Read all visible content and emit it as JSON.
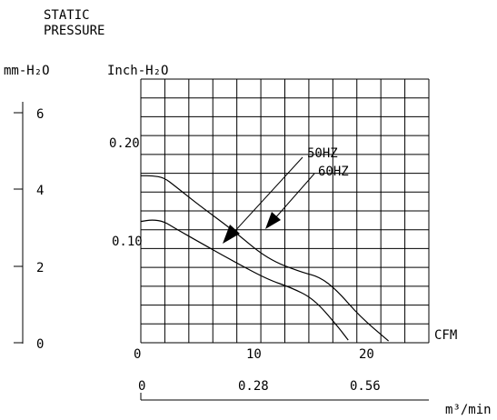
{
  "chart_data": {
    "type": "line",
    "title_lines": [
      "STATIC",
      "PRESSURE"
    ],
    "left_axis_title": "mm-H₂O",
    "left_axis_ticks": [
      "6",
      "4",
      "2",
      "0"
    ],
    "y_axis_title": "Inch-H₂O",
    "y_tick_labels": [
      "0.20",
      "0.10"
    ],
    "x_axis_title": "CFM",
    "x_tick_labels": [
      "0",
      "10",
      "20"
    ],
    "bottom_axis_title": "m³/min",
    "bottom_axis_ticks": [
      "0",
      "0.28",
      "0.56"
    ],
    "xlim": [
      0,
      25
    ],
    "ylim": [
      0,
      0.3
    ],
    "series": [
      {
        "name": "50HZ",
        "x": [
          0,
          1,
          2,
          3,
          5,
          8,
          11,
          13,
          15,
          17,
          18
        ],
        "y": [
          0.138,
          0.14,
          0.138,
          0.13,
          0.115,
          0.093,
          0.072,
          0.063,
          0.05,
          0.02,
          0.003
        ]
      },
      {
        "name": "60HZ",
        "x": [
          0,
          1,
          2,
          3,
          5,
          8,
          11,
          14,
          15.5,
          17,
          19,
          21.5
        ],
        "y": [
          0.19,
          0.19,
          0.188,
          0.178,
          0.157,
          0.128,
          0.095,
          0.08,
          0.075,
          0.06,
          0.03,
          0.002
        ]
      }
    ],
    "grid": true
  }
}
